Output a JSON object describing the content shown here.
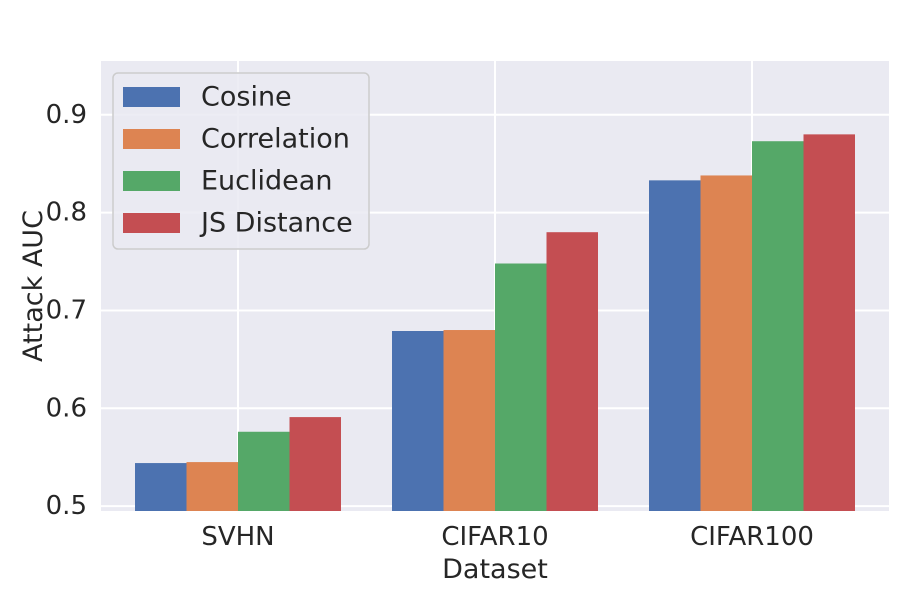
{
  "chart_data": {
    "type": "bar",
    "title": "",
    "xlabel": "Dataset",
    "ylabel": "Attack AUC",
    "categories": [
      "SVHN",
      "CIFAR10",
      "CIFAR100"
    ],
    "series": [
      {
        "name": "Cosine",
        "color": "#4c72b0",
        "values": [
          0.544,
          0.679,
          0.833
        ]
      },
      {
        "name": "Correlation",
        "color": "#dd8452",
        "values": [
          0.545,
          0.68,
          0.838
        ]
      },
      {
        "name": "Euclidean",
        "color": "#55a868",
        "values": [
          0.576,
          0.748,
          0.873
        ]
      },
      {
        "name": "JS Distance",
        "color": "#c44e52",
        "values": [
          0.591,
          0.78,
          0.88
        ]
      }
    ],
    "ylim": [
      0.495,
      0.955
    ],
    "yticks": [
      0.5,
      0.6,
      0.7,
      0.8,
      0.9
    ],
    "ytick_labels": [
      "0.5",
      "0.6",
      "0.7",
      "0.8",
      "0.9"
    ],
    "grid": true,
    "legend_position": "top-left",
    "colors": {
      "plot_background": "#eaeaf2",
      "grid": "#ffffff"
    }
  }
}
